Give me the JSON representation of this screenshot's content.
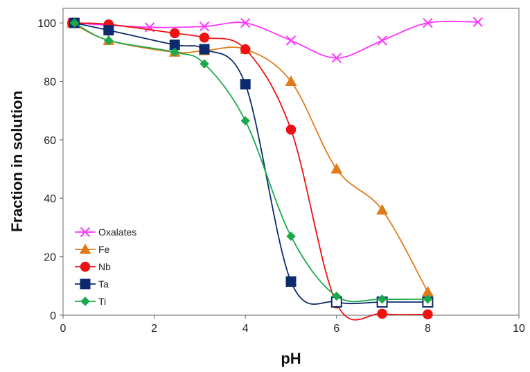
{
  "chart_data": {
    "type": "scatter",
    "xlabel": "pH",
    "ylabel": "Fraction in solution",
    "xlim": [
      0,
      10
    ],
    "ylim": [
      0,
      105
    ],
    "x_ticks": [
      0,
      2,
      4,
      6,
      8,
      10
    ],
    "y_ticks": [
      0,
      20,
      40,
      60,
      80,
      100
    ],
    "grid": false,
    "legend_position": "bottom-left",
    "series": [
      {
        "name": "Oxalates",
        "marker": "x",
        "color": "#FF33FF",
        "points": [
          [
            0.2,
            100
          ],
          [
            1.9,
            98.5
          ],
          [
            3.1,
            98.8
          ],
          [
            4.0,
            100
          ],
          [
            5.0,
            94
          ],
          [
            6.0,
            88
          ],
          [
            7.0,
            94
          ],
          [
            8.0,
            100
          ],
          [
            9.1,
            100.3
          ]
        ]
      },
      {
        "name": "Fe",
        "marker": "triangle",
        "color": "#E07B1A",
        "points": [
          [
            0.2,
            100
          ],
          [
            1.0,
            94
          ],
          [
            2.45,
            90
          ],
          [
            3.1,
            90.5
          ],
          [
            4.0,
            91
          ],
          [
            5.0,
            80
          ],
          [
            6.0,
            50
          ],
          [
            7.0,
            36
          ],
          [
            8.0,
            8
          ]
        ]
      },
      {
        "name": "Nb",
        "marker": "circle",
        "color": "#EE1111",
        "points": [
          [
            0.2,
            100
          ],
          [
            1.0,
            99.5
          ],
          [
            2.45,
            96.5
          ],
          [
            3.1,
            95
          ],
          [
            4.0,
            91
          ],
          [
            5.0,
            63.5
          ],
          [
            6.0,
            4
          ],
          [
            7.0,
            0.5
          ],
          [
            8.0,
            0.3
          ]
        ]
      },
      {
        "name": "Ta",
        "marker": "square",
        "color": "#0D2A6E",
        "points": [
          [
            0.25,
            100
          ],
          [
            1.0,
            97.5
          ],
          [
            2.45,
            92.5
          ],
          [
            3.1,
            91
          ],
          [
            4.0,
            79
          ],
          [
            5.0,
            11.5
          ],
          [
            6.0,
            4.5
          ],
          [
            7.0,
            4.5
          ],
          [
            8.0,
            4.5
          ]
        ],
        "hollow_from_index": 6
      },
      {
        "name": "Ti",
        "marker": "diamond",
        "color": "#1AAA4B",
        "points": [
          [
            0.25,
            100
          ],
          [
            1.0,
            94
          ],
          [
            2.45,
            90
          ],
          [
            3.1,
            86
          ],
          [
            4.0,
            66.5
          ],
          [
            5.0,
            27
          ],
          [
            6.0,
            6.5
          ],
          [
            7.0,
            5.5
          ],
          [
            8.0,
            5.5
          ]
        ]
      }
    ]
  }
}
